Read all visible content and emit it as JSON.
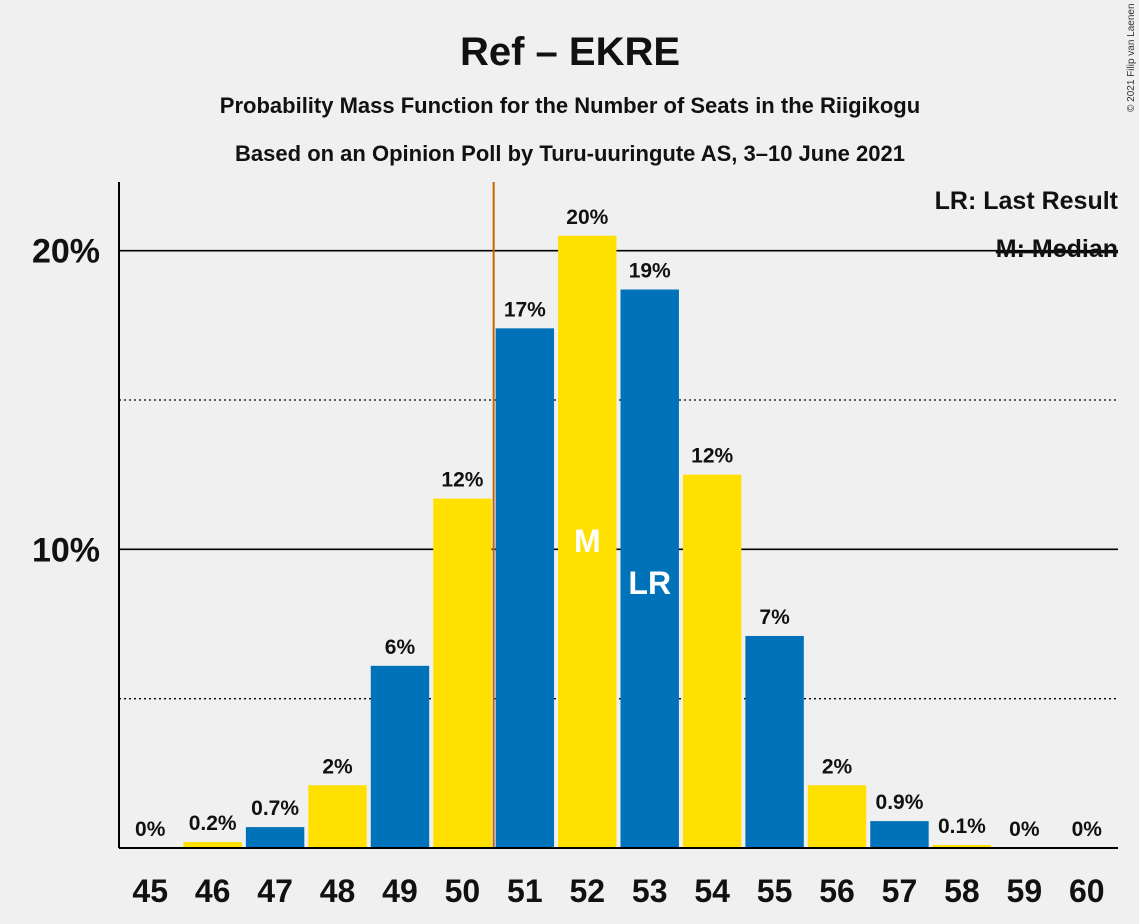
{
  "chart_data": {
    "type": "bar",
    "title": "Ref – EKRE",
    "subtitle_1": "Probability Mass Function for the Number of Seats in the Riigikogu",
    "subtitle_2": "Based on an Opinion Poll by Turu-uuringute AS, 3–10 June 2021",
    "copyright": "© 2021 Filip van Laenen",
    "categories": [
      "45",
      "46",
      "47",
      "48",
      "49",
      "50",
      "51",
      "52",
      "53",
      "54",
      "55",
      "56",
      "57",
      "58",
      "59",
      "60"
    ],
    "values": [
      0,
      0.2,
      0.7,
      2.1,
      6.1,
      11.7,
      17.4,
      20.5,
      18.7,
      12.5,
      7.1,
      2.1,
      0.9,
      0.1,
      0,
      0
    ],
    "labels": [
      "0%",
      "0.2%",
      "0.7%",
      "2%",
      "6%",
      "12%",
      "17%",
      "20%",
      "19%",
      "12%",
      "7%",
      "2%",
      "0.9%",
      "0.1%",
      "0%",
      "0%"
    ],
    "colors": [
      "#0072B9",
      "#FFE000",
      "#0072B9",
      "#FFE000",
      "#0072B9",
      "#FFE000",
      "#0072B9",
      "#FFE000",
      "#0072B9",
      "#FFE000",
      "#0072B9",
      "#FFE000",
      "#0072B9",
      "#FFE000",
      "#0072B9",
      "#FFE000"
    ],
    "ylim": [
      0,
      22.3
    ],
    "yticks": [
      {
        "value": 10,
        "label": "10%"
      },
      {
        "value": 20,
        "label": "20%"
      }
    ],
    "dotted_gridlines": [
      5,
      15
    ],
    "last_result_seat": "53",
    "median_seat": "52",
    "last_result_marker": "LR",
    "median_marker": "M",
    "last_result_line_after": "50",
    "last_result_line_color": "#C86400",
    "legend_lr": "LR: Last Result",
    "legend_m": "M: Median",
    "legend_position": "top-right",
    "xlabel": "",
    "ylabel": ""
  }
}
